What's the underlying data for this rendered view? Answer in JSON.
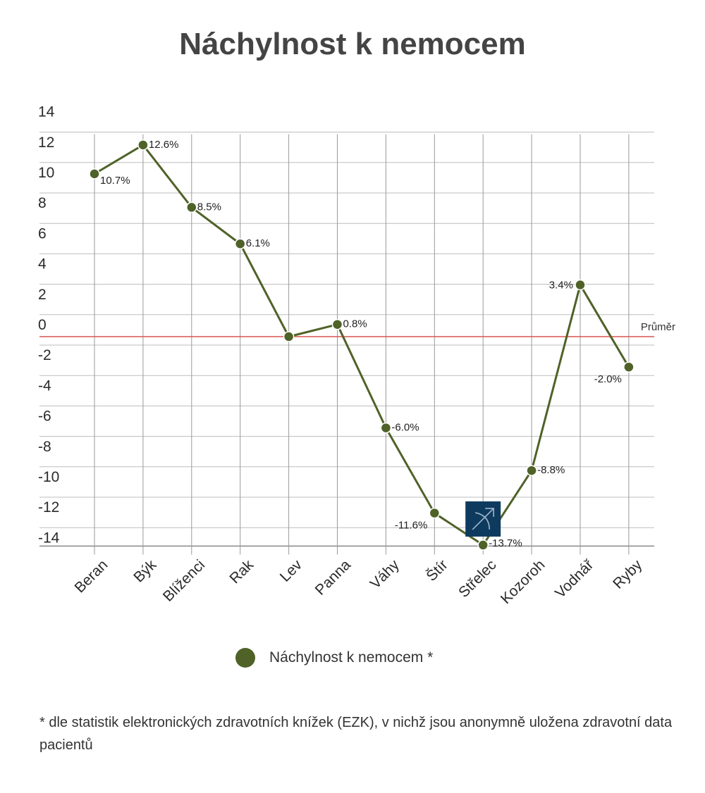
{
  "chart_data": {
    "type": "line",
    "title": "Náchylnost k nemocem",
    "categories": [
      "Beran",
      "Býk",
      "Blíženci",
      "Rak",
      "Lev",
      "Panna",
      "Váhy",
      "Štír",
      "Střelec",
      "Kozoroh",
      "Vodnář",
      "Ryby"
    ],
    "series": [
      {
        "name": "Náchylnost k nemocem *",
        "values": [
          10.7,
          12.6,
          8.5,
          6.1,
          0,
          0.8,
          -6.0,
          -11.6,
          -13.7,
          -8.8,
          3.4,
          -2.0
        ],
        "labels": [
          "10.7%",
          "12.6%",
          "8.5%",
          "6.1%",
          "",
          "0.8%",
          "-6.0%",
          "-11.6%",
          "-13.7%",
          "-8.8%",
          "3.4%",
          "-2.0%"
        ],
        "color": "#4f6228"
      }
    ],
    "ylim": [
      -14,
      14
    ],
    "yticks": [
      14,
      12,
      10,
      8,
      6,
      4,
      2,
      0,
      -2,
      -4,
      -6,
      -8,
      -10,
      -12,
      -14
    ],
    "reference_line": {
      "value": 0,
      "label": "Průměr",
      "color": "#d9534f"
    },
    "grid": true,
    "legend_position": "bottom",
    "highlight_icon": {
      "category": "Střelec",
      "icon": "sagittarius-archer-icon",
      "color": "#0e3a5e"
    }
  },
  "footnote": "* dle statistik elektronických zdravotních knížek (EZK), v nichž jsou anonymně uložena zdravotní data pacientů"
}
